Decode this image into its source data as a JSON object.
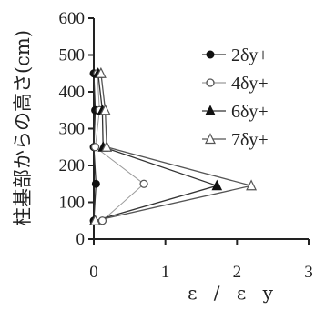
{
  "chart_data": {
    "type": "line",
    "title": "",
    "xlabel": "ε / ε y",
    "ylabel": "柱基部からの高さ(cm)",
    "xlim": [
      0,
      3
    ],
    "ylim": [
      0,
      600
    ],
    "x_ticks": [
      "0",
      "1",
      "2",
      "3"
    ],
    "y_ticks": [
      "0",
      "100",
      "200",
      "300",
      "400",
      "500",
      "600"
    ],
    "legend_position": "right",
    "series": [
      {
        "name": "2δy+",
        "marker": "filled-circle",
        "line_style": "solid",
        "color": "#333333",
        "points": [
          {
            "x": 0.0,
            "y": 50
          },
          {
            "x": 0.03,
            "y": 150
          },
          {
            "x": 0.0,
            "y": 250
          },
          {
            "x": 0.02,
            "y": 350
          },
          {
            "x": 0.0,
            "y": 450
          }
        ]
      },
      {
        "name": "4δy+",
        "marker": "open-circle",
        "line_style": "solid",
        "color": "#9a9a9a",
        "points": [
          {
            "x": 0.12,
            "y": 50
          },
          {
            "x": 0.7,
            "y": 150
          },
          {
            "x": 0.02,
            "y": 250
          },
          {
            "x": 0.08,
            "y": 350
          },
          {
            "x": 0.05,
            "y": 450
          }
        ]
      },
      {
        "name": "6δy+",
        "marker": "filled-triangle",
        "line_style": "solid",
        "color": "#333333",
        "points": [
          {
            "x": 0.01,
            "y": 50
          },
          {
            "x": 1.72,
            "y": 145
          },
          {
            "x": 0.13,
            "y": 250
          },
          {
            "x": 0.12,
            "y": 350
          },
          {
            "x": 0.06,
            "y": 450
          }
        ]
      },
      {
        "name": "7δy+",
        "marker": "open-triangle",
        "line_style": "solid",
        "color": "#555555",
        "points": [
          {
            "x": 0.02,
            "y": 50
          },
          {
            "x": 2.2,
            "y": 145
          },
          {
            "x": 0.18,
            "y": 250
          },
          {
            "x": 0.16,
            "y": 350
          },
          {
            "x": 0.1,
            "y": 450
          }
        ]
      }
    ]
  }
}
